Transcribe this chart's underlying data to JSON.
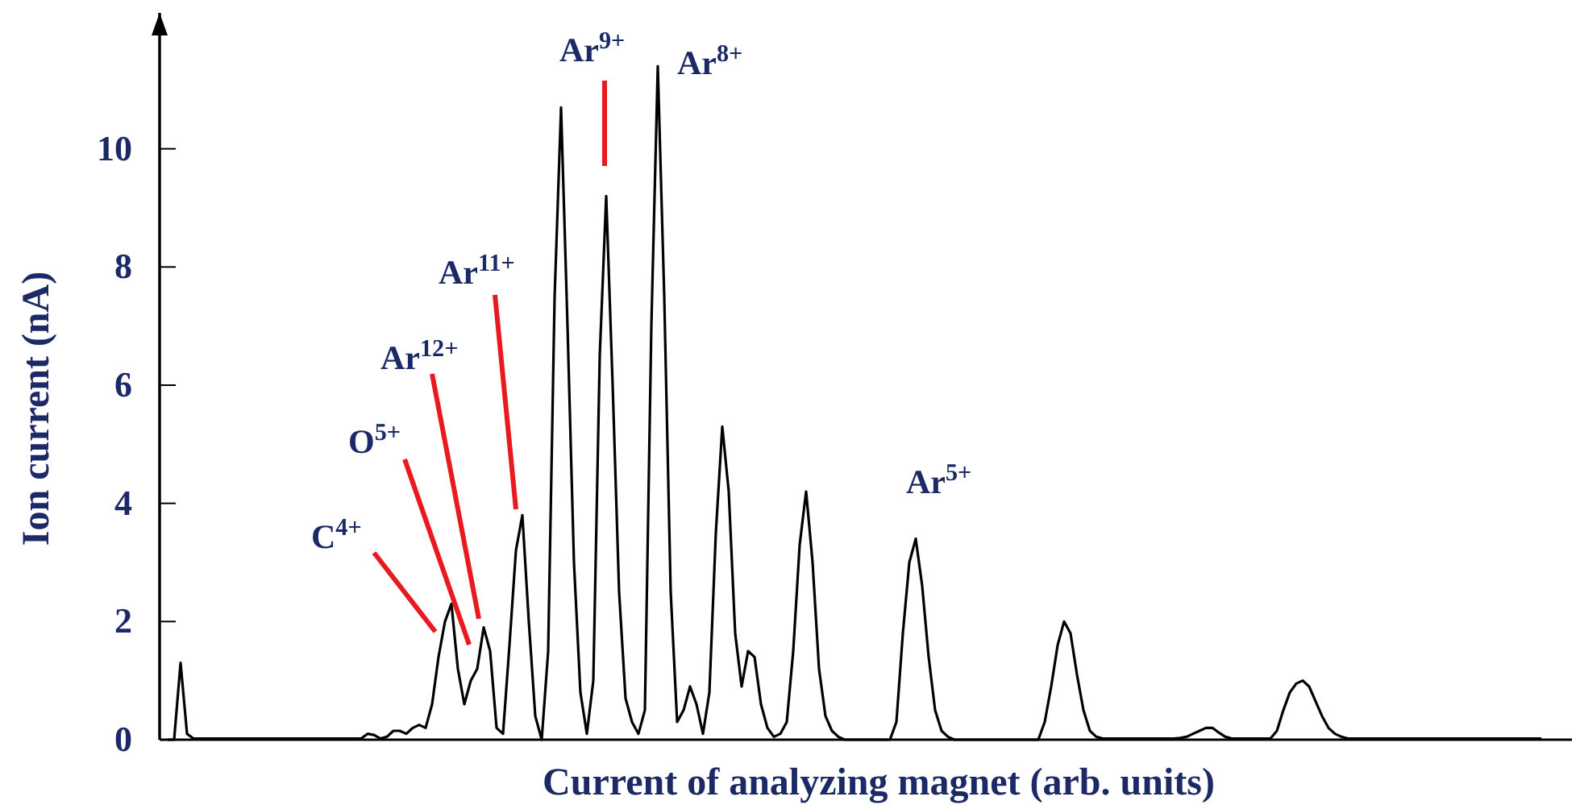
{
  "chart_data": {
    "type": "line",
    "xlabel": "Current of analyzing magnet (arb. units)",
    "ylabel": "Ion current (nA)",
    "ylim": [
      0,
      12.3
    ],
    "yticks": [
      0,
      2,
      4,
      6,
      8,
      10
    ],
    "grid": false,
    "marker": "none",
    "line_style": "solid",
    "categories": [
      null,
      null,
      null,
      null,
      null,
      null,
      null,
      null,
      null,
      null,
      null,
      null,
      null,
      null,
      null,
      null,
      null,
      null,
      null,
      null,
      null,
      null,
      null,
      null,
      null,
      null,
      null,
      null,
      null,
      null,
      null,
      null,
      null,
      null,
      null,
      null,
      null,
      null,
      null,
      null,
      null,
      null,
      null,
      null,
      null,
      null,
      null,
      null,
      null,
      null,
      null,
      null,
      null,
      null,
      null,
      null,
      null,
      null,
      null,
      null,
      null,
      null,
      null,
      null,
      null,
      null,
      null,
      null,
      null,
      null,
      null,
      null,
      null,
      null,
      null,
      null,
      null,
      null,
      null,
      null,
      null,
      null,
      null,
      null,
      null,
      null,
      null,
      null,
      null,
      null,
      null,
      null,
      null,
      null,
      null,
      null,
      null,
      null,
      null,
      null,
      null,
      null,
      null,
      null,
      null,
      null,
      null,
      null,
      null,
      null,
      null,
      null,
      null,
      null,
      null,
      null,
      null,
      null,
      null,
      null,
      null,
      null,
      null,
      null,
      null,
      null,
      null,
      null,
      null,
      null,
      null,
      null,
      null,
      null,
      null,
      null,
      null,
      null,
      null,
      null,
      null,
      null,
      null,
      null,
      null,
      null,
      null,
      null,
      null,
      null,
      null,
      null,
      null,
      null,
      null,
      null,
      null,
      null,
      null,
      null,
      null,
      null,
      null,
      null,
      null,
      null,
      null,
      null,
      null,
      null,
      null,
      null,
      null,
      null,
      null,
      null,
      null,
      null,
      null,
      null,
      null,
      null,
      null,
      null,
      null,
      null,
      null,
      null,
      null,
      null,
      null,
      null,
      null,
      null,
      null,
      null,
      null,
      null,
      null,
      null,
      null,
      null,
      null,
      null,
      null,
      null,
      null,
      null,
      null,
      null,
      null,
      null,
      null,
      null
    ],
    "series": [
      {
        "color": "#000000",
        "values": [
          0,
          0,
          1.3,
          0.1,
          0.02,
          0.02,
          0.02,
          0.02,
          0.02,
          0.02,
          0.02,
          0.02,
          0.02,
          0.02,
          0.02,
          0.02,
          0.02,
          0.02,
          0.02,
          0.02,
          0.02,
          0.02,
          0.02,
          0.02,
          0.02,
          0.02,
          0.02,
          0.02,
          0.02,
          0.02,
          0.02,
          0.1,
          0.08,
          0.02,
          0.05,
          0.15,
          0.15,
          0.1,
          0.2,
          0.25,
          0.2,
          0.6,
          1.4,
          2.0,
          2.3,
          1.2,
          0.6,
          1.0,
          1.2,
          1.9,
          1.5,
          0.2,
          0.1,
          1.6,
          3.2,
          3.8,
          2.0,
          0.4,
          0,
          1.5,
          7.5,
          10.7,
          7.0,
          3.0,
          0.8,
          0.1,
          1.0,
          6.5,
          9.2,
          6.0,
          2.5,
          0.7,
          0.3,
          0.1,
          0.5,
          7.0,
          11.4,
          7.5,
          2.5,
          0.3,
          0.5,
          0.9,
          0.6,
          0.1,
          0.8,
          3.5,
          5.3,
          4.2,
          1.8,
          0.9,
          1.5,
          1.4,
          0.6,
          0.2,
          0.05,
          0.1,
          0.3,
          1.5,
          3.3,
          4.2,
          3.0,
          1.2,
          0.4,
          0.15,
          0.05,
          0,
          0,
          0,
          0,
          0,
          0,
          0,
          0,
          0.3,
          1.8,
          3.0,
          3.4,
          2.6,
          1.4,
          0.5,
          0.15,
          0.05,
          0,
          0,
          0,
          0,
          0,
          0,
          0,
          0,
          0,
          0,
          0,
          0,
          0,
          0,
          0.3,
          0.9,
          1.6,
          2.0,
          1.8,
          1.1,
          0.5,
          0.15,
          0.05,
          0.02,
          0.02,
          0.02,
          0.02,
          0.02,
          0.02,
          0.02,
          0.02,
          0.02,
          0.02,
          0.02,
          0.02,
          0.03,
          0.05,
          0.1,
          0.15,
          0.2,
          0.2,
          0.12,
          0.05,
          0.02,
          0.02,
          0.02,
          0.02,
          0.02,
          0.02,
          0.02,
          0.15,
          0.5,
          0.8,
          0.95,
          1.0,
          0.9,
          0.65,
          0.4,
          0.2,
          0.1,
          0.05,
          0.02,
          0.02,
          0.02,
          0.02,
          0.02,
          0.02,
          0.02,
          0.02,
          0.02,
          0.02,
          0.02,
          0.02,
          0.02,
          0.02,
          0.02,
          0.02,
          0.02,
          0.02,
          0.02,
          0.02,
          0.02,
          0.02,
          0.02,
          0.02,
          0.02,
          0.02,
          0.02,
          0.02,
          0.02,
          0.02,
          0.02
        ]
      }
    ],
    "annotations": [
      "C$^{4+}$",
      "O$^{5+}$",
      "Ar$^{12+}$",
      "Ar$^{11+}$",
      "Ar$^{9+}$",
      "Ar$^{8+}$",
      "Ar$^{5+}$"
    ]
  }
}
